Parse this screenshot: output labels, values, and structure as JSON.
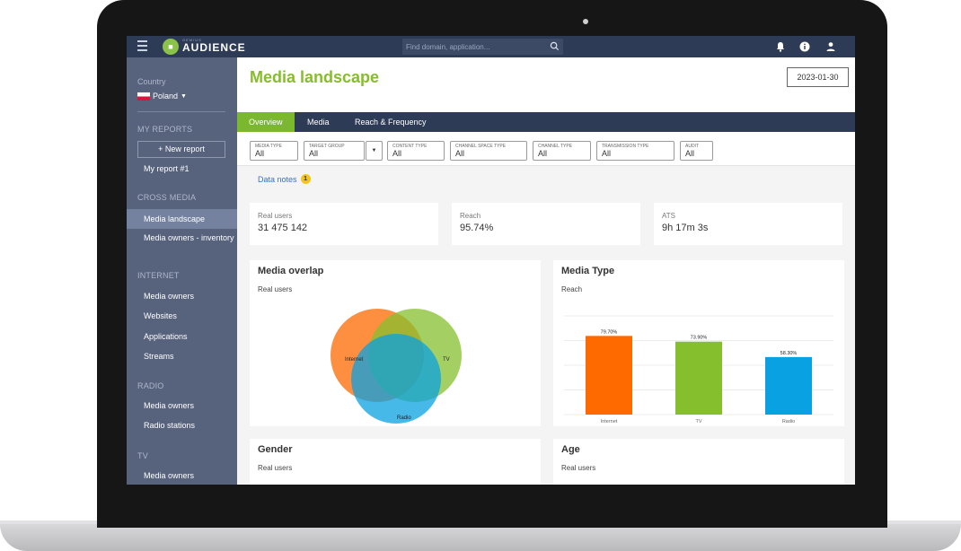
{
  "topbar": {
    "logo_small": "GEMIUS",
    "logo_text": "AUDIENCE",
    "search_placeholder": "Find domain, application..."
  },
  "sidebar": {
    "country_label": "Country",
    "country_value": "Poland",
    "my_reports_title": "MY REPORTS",
    "new_report_label": "+ New report",
    "my_report_item": "My report #1",
    "cross_media_title": "CROSS MEDIA",
    "cross_media_items": [
      "Media landscape",
      "Media owners - inventory"
    ],
    "internet_title": "INTERNET",
    "internet_items": [
      "Media owners",
      "Websites",
      "Applications",
      "Streams"
    ],
    "radio_title": "RADIO",
    "radio_items": [
      "Media owners",
      "Radio stations"
    ],
    "tv_title": "TV",
    "tv_items": [
      "Media owners"
    ]
  },
  "header": {
    "title": "Media landscape",
    "date": "2023-01-30"
  },
  "tabs": [
    "Overview",
    "Media",
    "Reach & Frequency"
  ],
  "filters": [
    {
      "label": "MEDIA TYPE",
      "value": "All"
    },
    {
      "label": "TARGET GROUP",
      "value": "All"
    },
    {
      "label": "CONTENT TYPE",
      "value": "All"
    },
    {
      "label": "CHANNEL SPACE TYPE",
      "value": "All"
    },
    {
      "label": "CHANNEL TYPE",
      "value": "All"
    },
    {
      "label": "TRANSMISSION TYPE",
      "value": "All"
    },
    {
      "label": "AUDIT",
      "value": "All"
    }
  ],
  "data_notes": {
    "label": "Data notes",
    "count": "1"
  },
  "kpis": [
    {
      "label": "Real users",
      "value": "31 475 142"
    },
    {
      "label": "Reach",
      "value": "95.74%"
    },
    {
      "label": "ATS",
      "value": "9h 17m 3s"
    }
  ],
  "media_overlap": {
    "title": "Media overlap",
    "subtitle": "Real users",
    "circle_labels": [
      "Internet",
      "TV",
      "Radio"
    ]
  },
  "media_type": {
    "title": "Media Type",
    "subtitle": "Reach"
  },
  "gender": {
    "title": "Gender",
    "subtitle": "Real users"
  },
  "age": {
    "title": "Age",
    "subtitle": "Real users"
  },
  "colors": {
    "internet": "#ff6a00",
    "tv": "#86bf2d",
    "radio": "#0aa1e2",
    "accent": "#7cb82f",
    "navbar": "#2e3b56",
    "sidebar": "#57627d"
  },
  "chart_data": {
    "type": "bar",
    "categories": [
      "Internet",
      "TV",
      "Radio"
    ],
    "values": [
      79.7,
      73.9,
      58.3
    ],
    "value_labels": [
      "79.70%",
      "73.90%",
      "58.30%"
    ],
    "title": "Media Type",
    "subtitle": "Reach",
    "ylim": [
      0,
      100
    ],
    "grid": true
  }
}
